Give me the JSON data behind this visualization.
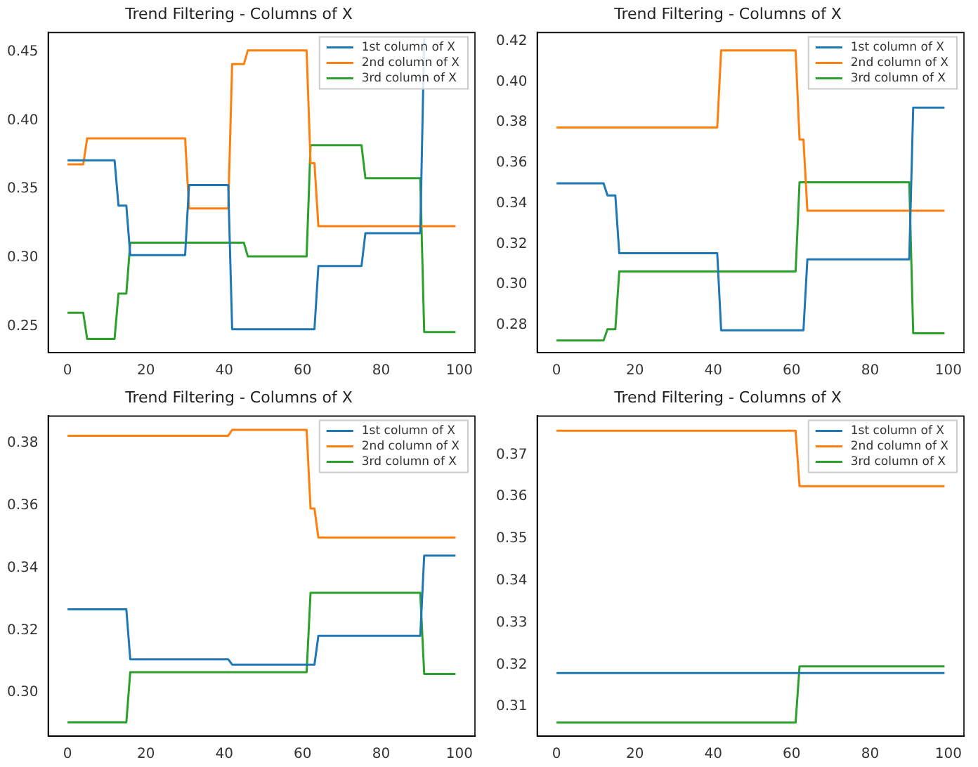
{
  "chart_data": [
    {
      "type": "line",
      "title": "Trend Filtering - Columns of X",
      "xlim": [
        -4.95,
        103.95
      ],
      "xticks": [
        0,
        20,
        40,
        60,
        80,
        100
      ],
      "ylim": [
        0.231,
        0.464
      ],
      "yticks": [
        0.25,
        {
          "value": 0.3,
          "label": "0.30"
        },
        0.35,
        {
          "value": 0.4,
          "label": "0.40"
        },
        0.45
      ],
      "grid": false,
      "legend": "top right",
      "series": [
        {
          "name": "1st column of X",
          "color": "#1f77b4",
          "x": [
            0,
            12,
            13,
            15,
            16,
            30,
            31,
            41,
            42,
            63,
            64,
            75,
            76,
            90,
            91
          ],
          "values": [
            0.371,
            0.371,
            0.338,
            0.338,
            0.302,
            0.302,
            0.353,
            0.353,
            0.248,
            0.248,
            0.294,
            0.294,
            0.318,
            0.318,
            0.46
          ]
        },
        {
          "name": "2nd column of X",
          "color": "#ff7f0e",
          "x": [
            0,
            4,
            5,
            30,
            31,
            41,
            42,
            45,
            46,
            61,
            62,
            63,
            64,
            99
          ],
          "values": [
            0.368,
            0.368,
            0.387,
            0.387,
            0.336,
            0.336,
            0.441,
            0.441,
            0.451,
            0.451,
            0.369,
            0.369,
            0.323,
            0.323
          ]
        },
        {
          "name": "3rd column of X",
          "color": "#2ca02c",
          "x": [
            0,
            4,
            5,
            12,
            13,
            15,
            16,
            45,
            46,
            61,
            62,
            75,
            76,
            90,
            91,
            99
          ],
          "values": [
            0.26,
            0.26,
            0.241,
            0.241,
            0.274,
            0.274,
            0.311,
            0.311,
            0.301,
            0.301,
            0.382,
            0.382,
            0.358,
            0.358,
            0.246,
            0.246
          ]
        }
      ]
    },
    {
      "type": "line",
      "title": "Trend Filtering - Columns of X",
      "xlim": [
        -4.95,
        103.95
      ],
      "xticks": [
        0,
        20,
        40,
        60,
        80,
        100
      ],
      "ylim": [
        0.2665,
        0.4243
      ],
      "yticks": [
        {
          "value": 0.28,
          "label": "0.28"
        },
        {
          "value": 0.3,
          "label": "0.30"
        },
        {
          "value": 0.32,
          "label": "0.32"
        },
        {
          "value": 0.34,
          "label": "0.34"
        },
        {
          "value": 0.36,
          "label": "0.36"
        },
        {
          "value": 0.38,
          "label": "0.38"
        },
        {
          "value": 0.4,
          "label": "0.40"
        },
        {
          "value": 0.42,
          "label": "0.42"
        }
      ],
      "grid": false,
      "legend": "top right",
      "series": [
        {
          "name": "1st column of X",
          "color": "#1f77b4",
          "x": [
            0,
            12,
            13,
            15,
            16,
            41,
            42,
            63,
            64,
            90,
            91,
            99
          ],
          "values": [
            0.35,
            0.35,
            0.344,
            0.344,
            0.3155,
            0.3155,
            0.2775,
            0.2775,
            0.3125,
            0.3125,
            0.3873,
            0.3873
          ]
        },
        {
          "name": "2nd column of X",
          "color": "#ff7f0e",
          "x": [
            0,
            41,
            42,
            61,
            62,
            63,
            64,
            99
          ],
          "values": [
            0.3775,
            0.3775,
            0.4155,
            0.4155,
            0.3715,
            0.3715,
            0.3365,
            0.3365
          ]
        },
        {
          "name": "3rd column of X",
          "color": "#2ca02c",
          "x": [
            0,
            12,
            13,
            15,
            16,
            61,
            62,
            90,
            91,
            99
          ],
          "values": [
            0.2725,
            0.2725,
            0.278,
            0.278,
            0.3065,
            0.3065,
            0.3505,
            0.3505,
            0.276,
            0.276
          ]
        }
      ]
    },
    {
      "type": "line",
      "title": "Trend Filtering - Columns of X",
      "xlim": [
        -4.95,
        103.95
      ],
      "xticks": [
        0,
        20,
        40,
        60,
        80,
        100
      ],
      "ylim": [
        0.2861,
        0.3886
      ],
      "yticks": [
        {
          "value": 0.3,
          "label": "0.30"
        },
        {
          "value": 0.32,
          "label": "0.32"
        },
        {
          "value": 0.34,
          "label": "0.34"
        },
        {
          "value": 0.36,
          "label": "0.36"
        },
        {
          "value": 0.38,
          "label": "0.38"
        }
      ],
      "grid": false,
      "legend": "top right",
      "series": [
        {
          "name": "1st column of X",
          "color": "#1f77b4",
          "x": [
            0,
            15,
            16,
            41,
            42,
            63,
            64,
            90,
            91,
            99
          ],
          "values": [
            0.3267,
            0.3267,
            0.3107,
            0.3107,
            0.309,
            0.309,
            0.3182,
            0.3182,
            0.3439,
            0.3439
          ]
        },
        {
          "name": "2nd column of X",
          "color": "#ff7f0e",
          "x": [
            0,
            41,
            42,
            61,
            62,
            63,
            64,
            99
          ],
          "values": [
            0.3823,
            0.3823,
            0.3842,
            0.3842,
            0.359,
            0.359,
            0.3497,
            0.3497
          ]
        },
        {
          "name": "3rd column of X",
          "color": "#2ca02c",
          "x": [
            0,
            15,
            16,
            61,
            62,
            90,
            91,
            99
          ],
          "values": [
            0.2905,
            0.2905,
            0.3066,
            0.3066,
            0.332,
            0.332,
            0.306,
            0.306
          ]
        }
      ]
    },
    {
      "type": "line",
      "title": "Trend Filtering - Columns of X",
      "xlim": [
        -4.95,
        103.95
      ],
      "xticks": [
        0,
        20,
        40,
        60,
        80,
        100
      ],
      "ylim": [
        0.303,
        0.3792
      ],
      "yticks": [
        {
          "value": 0.31,
          "label": "0.31"
        },
        {
          "value": 0.32,
          "label": "0.32"
        },
        {
          "value": 0.33,
          "label": "0.33"
        },
        {
          "value": 0.34,
          "label": "0.34"
        },
        {
          "value": 0.35,
          "label": "0.35"
        },
        {
          "value": 0.36,
          "label": "0.36"
        },
        {
          "value": 0.37,
          "label": "0.37"
        }
      ],
      "grid": false,
      "legend": "top right",
      "series": [
        {
          "name": "1st column of X",
          "color": "#1f77b4",
          "x": [
            0,
            99
          ],
          "values": [
            0.318,
            0.318
          ]
        },
        {
          "name": "2nd column of X",
          "color": "#ff7f0e",
          "x": [
            0,
            61,
            62,
            99
          ],
          "values": [
            0.3757,
            0.3757,
            0.3625,
            0.3625
          ]
        },
        {
          "name": "3rd column of X",
          "color": "#2ca02c",
          "x": [
            0,
            61,
            62,
            99
          ],
          "values": [
            0.3062,
            0.3062,
            0.3196,
            0.3196
          ]
        }
      ]
    }
  ]
}
